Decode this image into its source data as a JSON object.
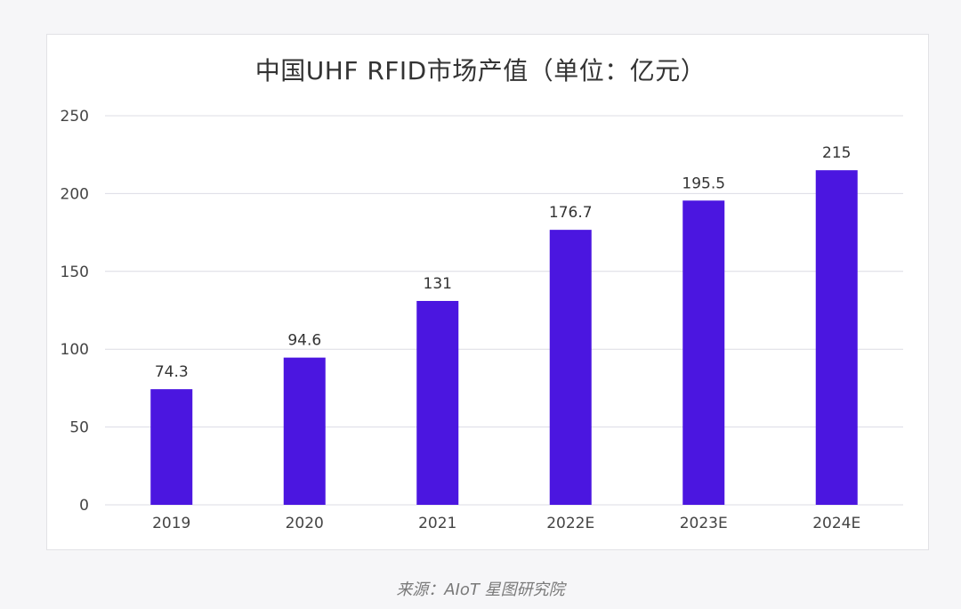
{
  "chart_data": {
    "type": "bar",
    "title": "中国UHF RFID市场产值（单位：亿元）",
    "categories": [
      "2019",
      "2020",
      "2021",
      "2022E",
      "2023E",
      "2024E"
    ],
    "values": [
      74.3,
      94.6,
      131,
      176.7,
      195.5,
      215
    ],
    "value_labels": [
      "74.3",
      "94.6",
      "131",
      "176.7",
      "195.5",
      "215"
    ],
    "ylim": [
      0,
      250
    ],
    "yticks": [
      0,
      50,
      100,
      150,
      200,
      250
    ],
    "grid": true,
    "bar_color": "#4b16e0",
    "grid_color": "#dcdce4",
    "legend": "none"
  },
  "source": "来源：AIoT 星图研究院"
}
